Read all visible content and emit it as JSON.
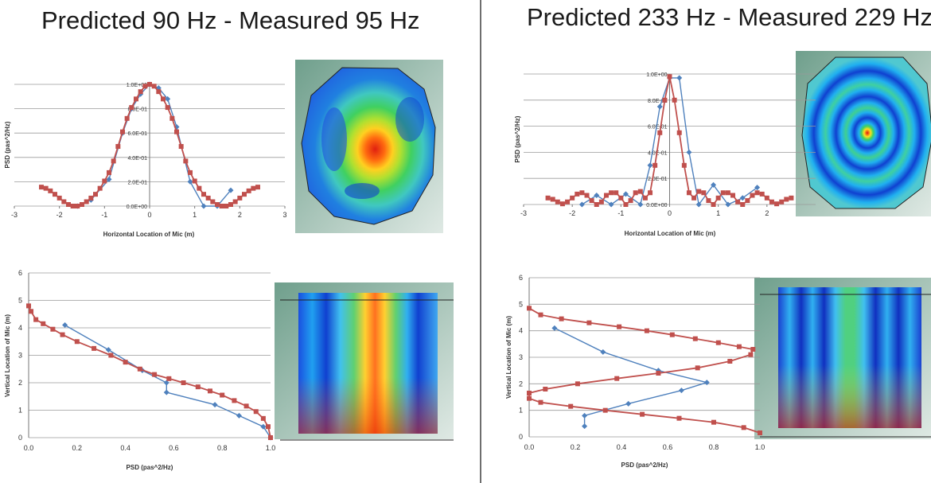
{
  "titles": {
    "left": "Predicted 90 Hz - Measured 95 Hz",
    "right": "Predicted 233 Hz - Measured 229 Hz"
  },
  "colors": {
    "measured": "#4f81bd",
    "predicted": "#c0504d",
    "grid": "#9a9a9a",
    "axis": "#777777"
  },
  "chart_data": [
    {
      "id": "left-horizontal",
      "type": "line",
      "xlabel": "Horizontal Location of Mic (m)",
      "ylabel": "PSD (pas^2/Hz)",
      "xlim": [
        -3,
        3
      ],
      "ylim": [
        0,
        1
      ],
      "xticks": [
        "-3",
        "-2",
        "-1",
        "0",
        "1",
        "2",
        "3"
      ],
      "yticks": [
        "0.0E+00",
        "2.0E-01",
        "4.0E-01",
        "6.0E-01",
        "8.0E-01",
        "1.0E+00"
      ],
      "grid": true,
      "series": [
        {
          "role": "measured",
          "x": [
            -1.6,
            -1.3,
            -0.9,
            -0.6,
            -0.4,
            -0.2,
            0.0,
            0.2,
            0.4,
            0.6,
            0.9,
            1.2,
            1.5,
            1.8
          ],
          "y": [
            0.0,
            0.05,
            0.22,
            0.6,
            0.8,
            0.92,
            1.0,
            0.97,
            0.88,
            0.65,
            0.2,
            0.0,
            0.0,
            0.13
          ]
        },
        {
          "role": "predicted",
          "x": [
            -2.4,
            -2.3,
            -2.2,
            -2.1,
            -2.0,
            -1.9,
            -1.8,
            -1.7,
            -1.6,
            -1.5,
            -1.4,
            -1.3,
            -1.2,
            -1.1,
            -1.0,
            -0.9,
            -0.8,
            -0.7,
            -0.6,
            -0.5,
            -0.4,
            -0.3,
            -0.2,
            -0.1,
            0.0,
            0.1,
            0.2,
            0.3,
            0.4,
            0.5,
            0.6,
            0.7,
            0.8,
            0.9,
            1.0,
            1.1,
            1.2,
            1.3,
            1.4,
            1.5,
            1.6,
            1.7,
            1.8,
            1.9,
            2.0,
            2.1,
            2.2,
            2.3,
            2.4
          ],
          "y": [
            0.156,
            0.146,
            0.125,
            0.097,
            0.066,
            0.036,
            0.013,
            0.0,
            0.0,
            0.013,
            0.036,
            0.066,
            0.097,
            0.146,
            0.206,
            0.275,
            0.37,
            0.49,
            0.61,
            0.72,
            0.81,
            0.88,
            0.94,
            0.985,
            1.0,
            0.985,
            0.94,
            0.88,
            0.81,
            0.72,
            0.61,
            0.49,
            0.37,
            0.275,
            0.206,
            0.146,
            0.097,
            0.066,
            0.036,
            0.013,
            0.0,
            0.0,
            0.013,
            0.036,
            0.066,
            0.097,
            0.125,
            0.146,
            0.156
          ]
        }
      ]
    },
    {
      "id": "left-vertical",
      "type": "line",
      "xlabel": "PSD (pas^2/Hz)",
      "ylabel": "Vertical Location of Mic (m)",
      "xlim": [
        0,
        1
      ],
      "ylim": [
        0,
        6
      ],
      "xticks": [
        "0.0",
        "0.2",
        "0.4",
        "0.6",
        "0.8",
        "1.0"
      ],
      "yticks": [
        "0",
        "1",
        "2",
        "3",
        "4",
        "5",
        "6"
      ],
      "grid": true,
      "series": [
        {
          "role": "measured",
          "x": [
            0.15,
            0.33,
            0.47,
            0.57,
            0.57,
            0.77,
            0.87,
            0.97,
            1.0
          ],
          "y": [
            4.1,
            3.2,
            2.45,
            2.0,
            1.65,
            1.2,
            0.8,
            0.4,
            0.0
          ]
        },
        {
          "role": "predicted",
          "x": [
            0.0,
            0.01,
            0.03,
            0.06,
            0.1,
            0.14,
            0.2,
            0.27,
            0.34,
            0.4,
            0.46,
            0.52,
            0.58,
            0.64,
            0.7,
            0.75,
            0.8,
            0.85,
            0.9,
            0.94,
            0.97,
            0.99,
            1.0
          ],
          "y": [
            4.8,
            4.6,
            4.3,
            4.15,
            3.95,
            3.75,
            3.5,
            3.25,
            3.0,
            2.75,
            2.5,
            2.3,
            2.15,
            2.0,
            1.85,
            1.7,
            1.55,
            1.35,
            1.15,
            0.95,
            0.7,
            0.4,
            0.0
          ]
        }
      ]
    },
    {
      "id": "right-horizontal",
      "type": "line",
      "xlabel": "Horizontal Location of Mic (m)",
      "ylabel": "PSD (pas^2/Hz)",
      "xlim": [
        -3,
        3
      ],
      "ylim": [
        0,
        1
      ],
      "xticks": [
        "-3",
        "-2",
        "-1",
        "0",
        "1",
        "2"
      ],
      "yticks": [
        "0.0E+00",
        "2.0E-01",
        "4.0E-01",
        "6.0E-01",
        "8.0E-01",
        "1.0E+00"
      ],
      "grid": true,
      "series": [
        {
          "role": "measured",
          "x": [
            -1.8,
            -1.5,
            -1.2,
            -0.9,
            -0.6,
            -0.4,
            -0.2,
            0.0,
            0.2,
            0.4,
            0.6,
            0.9,
            1.2,
            1.5,
            1.8
          ],
          "y": [
            0.0,
            0.07,
            0.0,
            0.08,
            0.0,
            0.3,
            0.75,
            0.97,
            0.97,
            0.4,
            0.0,
            0.15,
            0.0,
            0.05,
            0.13
          ]
        },
        {
          "role": "predicted",
          "x": [
            -2.5,
            -2.4,
            -2.3,
            -2.2,
            -2.1,
            -2.0,
            -1.9,
            -1.8,
            -1.7,
            -1.6,
            -1.5,
            -1.4,
            -1.3,
            -1.2,
            -1.1,
            -1.0,
            -0.9,
            -0.8,
            -0.7,
            -0.6,
            -0.5,
            -0.4,
            -0.3,
            -0.2,
            -0.1,
            0.0,
            0.1,
            0.2,
            0.3,
            0.4,
            0.5,
            0.6,
            0.7,
            0.8,
            0.9,
            1.0,
            1.1,
            1.2,
            1.3,
            1.4,
            1.5,
            1.6,
            1.7,
            1.8,
            1.9,
            2.0,
            2.1,
            2.2,
            2.3,
            2.4,
            2.5
          ],
          "y": [
            0.05,
            0.04,
            0.02,
            0.005,
            0.02,
            0.05,
            0.08,
            0.09,
            0.07,
            0.03,
            0.0,
            0.02,
            0.07,
            0.09,
            0.09,
            0.05,
            0.0,
            0.03,
            0.09,
            0.1,
            0.05,
            0.09,
            0.3,
            0.55,
            0.8,
            0.98,
            0.8,
            0.55,
            0.3,
            0.09,
            0.05,
            0.1,
            0.09,
            0.03,
            0.0,
            0.05,
            0.09,
            0.09,
            0.07,
            0.02,
            0.0,
            0.03,
            0.07,
            0.09,
            0.08,
            0.05,
            0.02,
            0.005,
            0.02,
            0.04,
            0.05
          ]
        }
      ]
    },
    {
      "id": "right-vertical",
      "type": "line",
      "xlabel": "PSD (pas^2/Hz)",
      "ylabel": "Vertical Location of Mic (m)",
      "xlim": [
        0,
        1
      ],
      "ylim": [
        0,
        6
      ],
      "xticks": [
        "0.0",
        "0.2",
        "0.4",
        "0.6",
        "0.8",
        "1.0"
      ],
      "yticks": [
        "0",
        "1",
        "2",
        "3",
        "4",
        "5",
        "6"
      ],
      "grid": true,
      "series": [
        {
          "role": "measured",
          "x": [
            0.11,
            0.32,
            0.56,
            0.77,
            0.66,
            0.43,
            0.24,
            0.24
          ],
          "y": [
            4.1,
            3.2,
            2.5,
            2.05,
            1.75,
            1.25,
            0.8,
            0.4
          ]
        },
        {
          "role": "predicted",
          "x": [
            0.0,
            0.05,
            0.14,
            0.26,
            0.39,
            0.51,
            0.62,
            0.72,
            0.82,
            0.91,
            0.97,
            0.96,
            0.87,
            0.73,
            0.56,
            0.38,
            0.21,
            0.07,
            0.0,
            0.0,
            0.05,
            0.18,
            0.33,
            0.49,
            0.65,
            0.8,
            0.93,
            1.0
          ],
          "y": [
            4.85,
            4.6,
            4.45,
            4.3,
            4.15,
            4.0,
            3.85,
            3.7,
            3.55,
            3.4,
            3.3,
            3.1,
            2.85,
            2.6,
            2.4,
            2.2,
            2.0,
            1.8,
            1.65,
            1.45,
            1.3,
            1.15,
            1.0,
            0.85,
            0.7,
            0.55,
            0.35,
            0.15
          ]
        }
      ]
    }
  ]
}
